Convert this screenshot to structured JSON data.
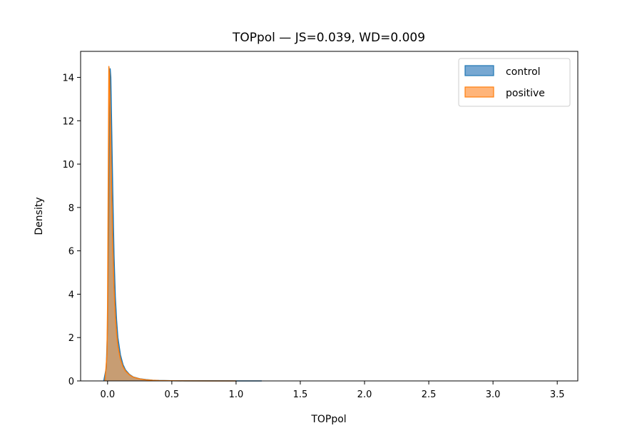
{
  "chart_data": {
    "type": "area",
    "title": "TOPpol — JS=0.039, WD=0.009",
    "xlabel": "TOPpol",
    "ylabel": "Density",
    "xlim": [
      -0.21,
      3.66
    ],
    "ylim": [
      0,
      15.2
    ],
    "xticks": [
      0.0,
      0.5,
      1.0,
      1.5,
      2.0,
      2.5,
      3.0,
      3.5
    ],
    "xtick_labels": [
      "0.0",
      "0.5",
      "1.0",
      "1.5",
      "2.0",
      "2.5",
      "3.0",
      "3.5"
    ],
    "yticks": [
      0,
      2,
      4,
      6,
      8,
      10,
      12,
      14
    ],
    "ytick_labels": [
      "0",
      "2",
      "4",
      "6",
      "8",
      "10",
      "12",
      "14"
    ],
    "grid": false,
    "legend_position": "upper-right",
    "series": [
      {
        "name": "control",
        "color": "#1f77b4",
        "fill": "#77a8d2",
        "x": [
          -0.03,
          -0.01,
          0.0,
          0.01,
          0.015,
          0.02,
          0.025,
          0.03,
          0.04,
          0.05,
          0.06,
          0.07,
          0.08,
          0.1,
          0.12,
          0.14,
          0.17,
          0.2,
          0.25,
          0.3,
          0.35,
          0.4,
          0.5,
          0.6,
          0.8,
          1.0,
          1.2
        ],
        "y": [
          0,
          0.6,
          2.5,
          8.0,
          12.0,
          14.4,
          14.0,
          12.3,
          8.8,
          5.8,
          3.9,
          2.8,
          2.0,
          1.2,
          0.75,
          0.5,
          0.3,
          0.18,
          0.1,
          0.06,
          0.035,
          0.02,
          0.01,
          0.005,
          0.003,
          0.001,
          0
        ]
      },
      {
        "name": "positive",
        "color": "#ff7f0e",
        "fill": "#ffb57a",
        "x": [
          -0.02,
          -0.005,
          0.0,
          0.005,
          0.01,
          0.015,
          0.02,
          0.03,
          0.04,
          0.05,
          0.06,
          0.07,
          0.08,
          0.1,
          0.12,
          0.14,
          0.17,
          0.2,
          0.25,
          0.3,
          0.35,
          0.4,
          0.5,
          0.6,
          0.8,
          1.0
        ],
        "y": [
          0,
          1.2,
          3.5,
          9.0,
          14.5,
          14.2,
          12.5,
          9.2,
          6.3,
          4.3,
          3.0,
          2.2,
          1.6,
          1.0,
          0.65,
          0.45,
          0.28,
          0.17,
          0.09,
          0.05,
          0.03,
          0.018,
          0.008,
          0.004,
          0.002,
          0
        ]
      }
    ]
  }
}
